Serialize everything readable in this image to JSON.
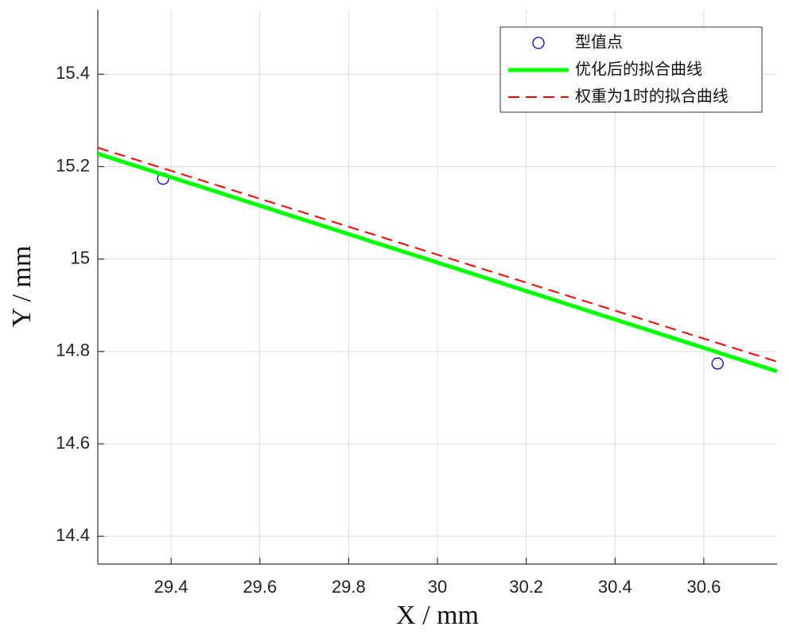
{
  "chart_data": {
    "type": "line",
    "xlabel": "X / mm",
    "ylabel": "Y / mm",
    "xlim": [
      29.235,
      30.765
    ],
    "ylim": [
      14.34,
      15.54
    ],
    "xticks": [
      29.4,
      29.6,
      29.8,
      30,
      30.2,
      30.4,
      30.6
    ],
    "yticks": [
      14.4,
      14.6,
      14.8,
      15,
      15.2,
      15.4
    ],
    "grid": true,
    "legend": "upper right",
    "series": [
      {
        "name": "型值点",
        "color": "#0000cc",
        "style": "marker",
        "x": [
          29.382,
          30.631
        ],
        "values": [
          15.174,
          14.774
        ]
      },
      {
        "name": "优化后的拟合曲线",
        "color": "#00ff00",
        "style": "solid",
        "x": [
          29.235,
          30.765
        ],
        "values": [
          15.228,
          14.757
        ]
      },
      {
        "name": "权重为1时的拟合曲线",
        "color": "#ff0000",
        "style": "dashed",
        "x": [
          29.235,
          30.765
        ],
        "values": [
          15.241,
          14.778
        ]
      }
    ]
  }
}
